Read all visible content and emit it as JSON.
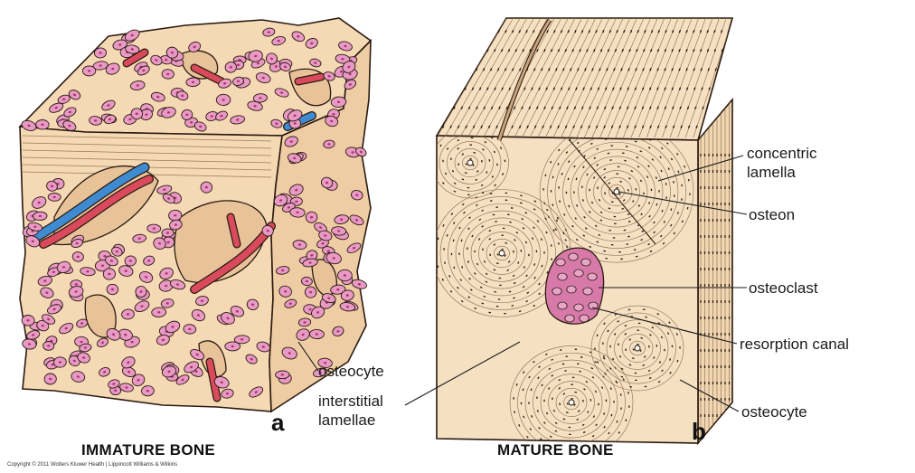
{
  "panels": [
    {
      "letter": "a",
      "caption": "IMMATURE BONE"
    },
    {
      "letter": "b",
      "caption": "MATURE BONE"
    }
  ],
  "labels": {
    "osteocyte_a": "osteocyte",
    "interstitial_1": "interstitial",
    "interstitial_2": "lamellae",
    "concentric_1": "concentric",
    "concentric_2": "lamella",
    "osteon": "osteon",
    "osteoclast": "osteoclast",
    "resorption": "resorption canal",
    "osteocyte_b": "osteocyte"
  },
  "copyright": "Copyright © 2011 Wolters Kluwer Health | Lippincott Williams & Wilkins",
  "colors": {
    "bone": "#f5d9b4",
    "bone_dark": "#e8c39a",
    "cell": "#e89ac4",
    "cell_nucleus": "#a8326e",
    "vessel_red": "#d94a5c",
    "vessel_blue": "#3f8bd1",
    "outline": "#2a1a10",
    "osteoclast": "#d77aa9"
  }
}
